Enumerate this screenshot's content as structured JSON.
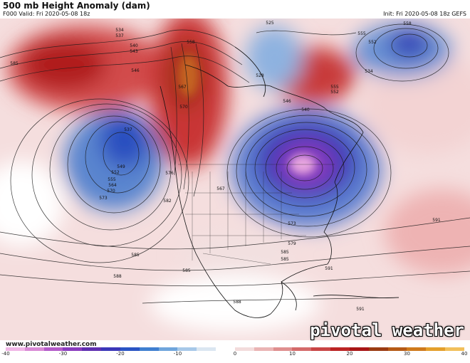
{
  "header": {
    "title": "500 mb Height Anomaly (dam)",
    "valid": "F000 Valid: Fri 2020-05-08 18z",
    "init": "Init: Fri 2020-05-08 18z GEFS"
  },
  "map": {
    "contour_labels": [
      {
        "text": "534"
      },
      {
        "text": "537"
      },
      {
        "text": "537"
      },
      {
        "text": "540"
      },
      {
        "text": "543"
      },
      {
        "text": "546"
      },
      {
        "text": "549"
      },
      {
        "text": "552"
      },
      {
        "text": "555"
      },
      {
        "text": "558"
      },
      {
        "text": "564"
      },
      {
        "text": "570"
      },
      {
        "text": "573"
      },
      {
        "text": "585"
      },
      {
        "text": "585"
      },
      {
        "text": "585"
      },
      {
        "text": "588"
      },
      {
        "text": "588"
      },
      {
        "text": "585"
      },
      {
        "text": "591"
      },
      {
        "text": "591"
      },
      {
        "text": "591"
      },
      {
        "text": "525"
      },
      {
        "text": "528"
      },
      {
        "text": "540"
      },
      {
        "text": "555"
      },
      {
        "text": "552"
      },
      {
        "text": "558"
      },
      {
        "text": "555"
      },
      {
        "text": "567"
      },
      {
        "text": "576"
      },
      {
        "text": "582"
      },
      {
        "text": "573"
      },
      {
        "text": "579"
      },
      {
        "text": "585"
      },
      {
        "text": "546"
      },
      {
        "text": "552"
      },
      {
        "text": "534"
      },
      {
        "text": "570"
      },
      {
        "text": "567"
      }
    ]
  },
  "footer": {
    "website": "www.pivotalweather.com",
    "brand": "pivotal weather"
  },
  "colorbar": {
    "ticks": [
      "-40",
      "-30",
      "-20",
      "-10",
      "0",
      "10",
      "20",
      "30",
      "40"
    ],
    "colors": [
      "#f0b6e6",
      "#d98ad6",
      "#b35bc9",
      "#8a3cbf",
      "#5f2fb0",
      "#3b37b8",
      "#2a54c4",
      "#3f7fd0",
      "#6fa5dc",
      "#a7c8e8",
      "#dbe6f1",
      "#ffffff",
      "#f3dcdc",
      "#eab4b4",
      "#df8f8f",
      "#d46a6a",
      "#c84545",
      "#bb2424",
      "#a81616",
      "#9a3b12",
      "#b55a16",
      "#cf7a1c",
      "#e4a02c",
      "#f2c05c"
    ]
  }
}
